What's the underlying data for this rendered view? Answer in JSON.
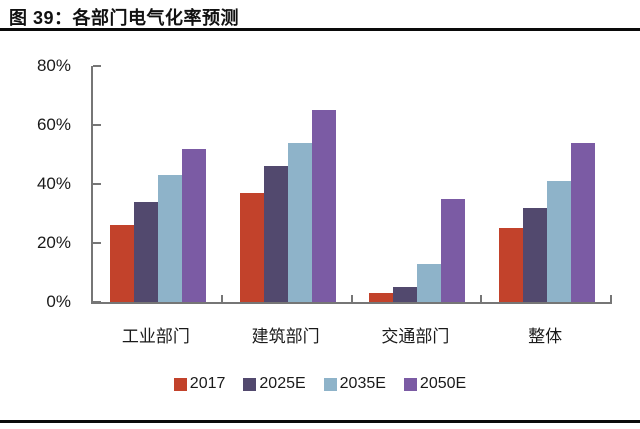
{
  "figure": {
    "title": "图 39：各部门电气化率预测"
  },
  "chart_data": {
    "type": "bar",
    "title": "各部门电气化率预测",
    "categories": [
      "工业部门",
      "建筑部门",
      "交通部门",
      "整体"
    ],
    "series": [
      {
        "name": "2017",
        "color": "#C2422B",
        "values": [
          26,
          37,
          3,
          25
        ]
      },
      {
        "name": "2025E",
        "color": "#52496E",
        "values": [
          34,
          46,
          5,
          32
        ]
      },
      {
        "name": "2035E",
        "color": "#8EB3C9",
        "values": [
          43,
          54,
          13,
          41
        ]
      },
      {
        "name": "2050E",
        "color": "#7B5BA4",
        "values": [
          52,
          65,
          35,
          54
        ]
      }
    ],
    "ylabel": "",
    "xlabel": "",
    "ylim": [
      0,
      80
    ],
    "ytick_step": 20,
    "ytick_suffix": "%",
    "grid": false,
    "legend_position": "bottom",
    "axis_color": "#767676",
    "unit": "percent"
  }
}
